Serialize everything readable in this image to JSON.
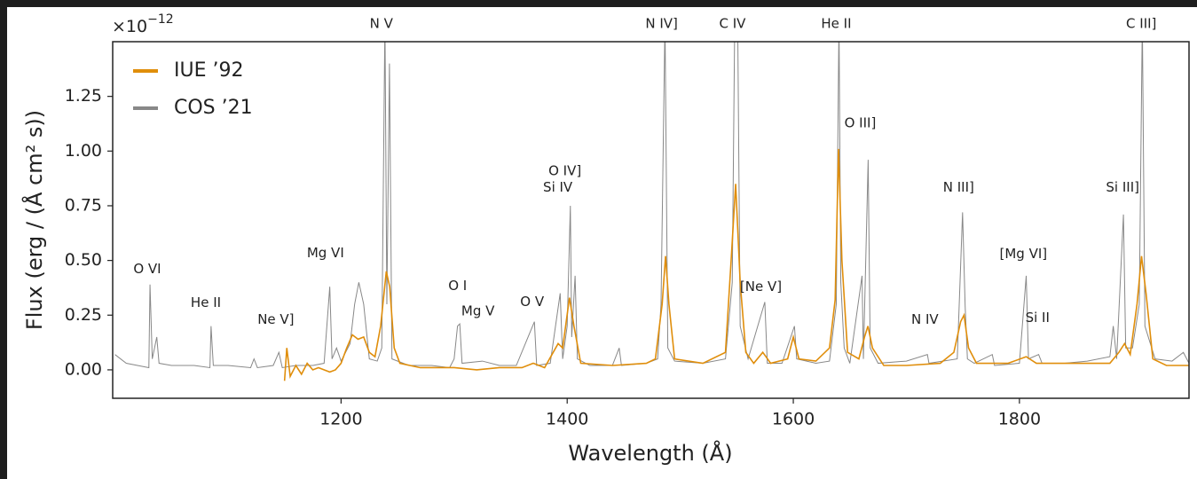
{
  "chart_data": {
    "type": "line",
    "offset_text": "×10",
    "offset_exponent": "−12",
    "xlabel": "Wavelength (Å)",
    "ylabel": "Flux (erg / (Å cm² s))",
    "xlim": [
      998,
      1950
    ],
    "ylim": [
      -0.13,
      1.5
    ],
    "xticks": [
      1200,
      1400,
      1600,
      1800
    ],
    "yticks": [
      {
        "value": 0,
        "label": "0.00"
      },
      0.25,
      {
        "value": 0.5,
        "label": "0.50"
      },
      0.75,
      {
        "value": 1,
        "label": "1.00"
      },
      1.25
    ],
    "legend": "upper left",
    "series": [
      {
        "name": "IUE ’92",
        "color": "#e08e0b",
        "x": [
          1150,
          1152,
          1155,
          1160,
          1165,
          1170,
          1175,
          1180,
          1190,
          1195,
          1200,
          1205,
          1210,
          1215,
          1220,
          1225,
          1230,
          1235,
          1240,
          1243,
          1247,
          1252,
          1270,
          1300,
          1320,
          1340,
          1360,
          1370,
          1380,
          1392,
          1396,
          1402,
          1406,
          1412,
          1440,
          1470,
          1478,
          1484,
          1487,
          1490,
          1495,
          1520,
          1540,
          1545,
          1549,
          1553,
          1558,
          1565,
          1573,
          1580,
          1595,
          1600,
          1605,
          1620,
          1632,
          1637,
          1640,
          1643,
          1648,
          1658,
          1663,
          1666,
          1670,
          1680,
          1700,
          1730,
          1742,
          1748,
          1751,
          1755,
          1762,
          1790,
          1806,
          1815,
          1850,
          1880,
          1888,
          1893,
          1898,
          1904,
          1908,
          1912,
          1918,
          1930,
          1950
        ],
        "values": [
          -0.05,
          0.1,
          -0.03,
          0.02,
          -0.02,
          0.03,
          0.0,
          0.01,
          -0.01,
          0.0,
          0.03,
          0.1,
          0.16,
          0.14,
          0.15,
          0.08,
          0.06,
          0.2,
          0.45,
          0.38,
          0.1,
          0.03,
          0.01,
          0.01,
          0.0,
          0.01,
          0.01,
          0.03,
          0.01,
          0.12,
          0.1,
          0.33,
          0.2,
          0.03,
          0.02,
          0.03,
          0.05,
          0.3,
          0.52,
          0.3,
          0.05,
          0.03,
          0.08,
          0.5,
          0.85,
          0.4,
          0.08,
          0.03,
          0.08,
          0.03,
          0.05,
          0.15,
          0.05,
          0.04,
          0.1,
          0.32,
          1.01,
          0.5,
          0.08,
          0.05,
          0.15,
          0.2,
          0.1,
          0.02,
          0.02,
          0.03,
          0.08,
          0.22,
          0.25,
          0.1,
          0.03,
          0.03,
          0.06,
          0.03,
          0.03,
          0.03,
          0.08,
          0.12,
          0.07,
          0.3,
          0.52,
          0.35,
          0.05,
          0.02,
          0.02
        ]
      },
      {
        "name": "COS ’21",
        "color": "#888888",
        "x": [
          1000,
          1010,
          1020,
          1030,
          1031,
          1033,
          1037,
          1039,
          1050,
          1070,
          1084,
          1085,
          1087,
          1100,
          1120,
          1123,
          1126,
          1140,
          1145,
          1148,
          1160,
          1175,
          1185,
          1190,
          1192,
          1196,
          1200,
          1208,
          1212,
          1215.7,
          1220,
          1225,
          1232,
          1236,
          1238.8,
          1240.5,
          1242.8,
          1245,
          1260,
          1280,
          1296,
          1300,
          1303,
          1305,
          1307,
          1325,
          1340,
          1355,
          1371,
          1373,
          1385,
          1393.8,
          1396,
          1400,
          1402.8,
          1404,
          1407,
          1409,
          1420,
          1440,
          1446,
          1448,
          1470,
          1480,
          1483,
          1486.5,
          1489,
          1495,
          1520,
          1540,
          1546,
          1548.2,
          1550.8,
          1553,
          1560,
          1574.8,
          1577,
          1590,
          1601,
          1603,
          1620,
          1632,
          1638,
          1640.4,
          1642,
          1645,
          1650,
          1660.8,
          1662,
          1666.2,
          1668,
          1675,
          1700,
          1718.6,
          1720,
          1745,
          1749.7,
          1752,
          1754,
          1760,
          1776,
          1778,
          1800,
          1806,
          1808,
          1817,
          1820,
          1840,
          1860,
          1880,
          1883,
          1886,
          1892,
          1894,
          1900,
          1906,
          1908.7,
          1911,
          1920,
          1935,
          1945,
          1950
        ],
        "values": [
          0.07,
          0.03,
          0.02,
          0.01,
          0.39,
          0.05,
          0.15,
          0.03,
          0.02,
          0.02,
          0.01,
          0.2,
          0.02,
          0.02,
          0.01,
          0.05,
          0.01,
          0.02,
          0.08,
          0.01,
          0.02,
          0.02,
          0.03,
          0.38,
          0.05,
          0.1,
          0.04,
          0.12,
          0.3,
          0.4,
          0.3,
          0.05,
          0.04,
          0.1,
          1.6,
          0.3,
          1.4,
          0.05,
          0.02,
          0.02,
          0.01,
          0.05,
          0.2,
          0.21,
          0.03,
          0.04,
          0.02,
          0.02,
          0.22,
          0.02,
          0.03,
          0.35,
          0.05,
          0.2,
          0.75,
          0.15,
          0.43,
          0.05,
          0.02,
          0.02,
          0.1,
          0.02,
          0.03,
          0.05,
          0.3,
          1.6,
          0.1,
          0.04,
          0.03,
          0.05,
          0.4,
          1.6,
          1.6,
          0.2,
          0.05,
          0.31,
          0.03,
          0.03,
          0.2,
          0.05,
          0.03,
          0.04,
          0.3,
          1.6,
          0.4,
          0.1,
          0.03,
          0.43,
          0.05,
          0.96,
          0.1,
          0.03,
          0.04,
          0.07,
          0.03,
          0.05,
          0.72,
          0.29,
          0.05,
          0.03,
          0.07,
          0.02,
          0.03,
          0.43,
          0.05,
          0.07,
          0.03,
          0.03,
          0.04,
          0.06,
          0.2,
          0.05,
          0.71,
          0.1,
          0.1,
          0.3,
          1.6,
          0.2,
          0.05,
          0.04,
          0.08,
          0.03
        ]
      }
    ],
    "annotations": [
      {
        "text": "O VI",
        "x": 1028.6,
        "y": 0.459
      },
      {
        "text": "He II",
        "x": 1080.4,
        "y": 0.305
      },
      {
        "text": "Ne V]",
        "x": 1142.3,
        "y": 0.228
      },
      {
        "text": "Mg VI",
        "x": 1186.2,
        "y": 0.533
      },
      {
        "text": "N V",
        "x": 1235.6,
        "y": 1.581
      },
      {
        "text": "O I",
        "x": 1303.1,
        "y": 0.382
      },
      {
        "text": "Mg V",
        "x": 1321.1,
        "y": 0.268
      },
      {
        "text": "O V",
        "x": 1369,
        "y": 0.309
      },
      {
        "text": "O IV]",
        "x": 1398,
        "y": 0.907
      },
      {
        "text": "Si IV",
        "x": 1391.7,
        "y": 0.833
      },
      {
        "text": "N IV]",
        "x": 1483.5,
        "y": 1.581
      },
      {
        "text": "C IV",
        "x": 1546.2,
        "y": 1.581
      },
      {
        "text": "[Ne V]",
        "x": 1571.3,
        "y": 0.378
      },
      {
        "text": "He II",
        "x": 1638,
        "y": 1.581
      },
      {
        "text": "O III]",
        "x": 1659.2,
        "y": 1.126
      },
      {
        "text": "N III]",
        "x": 1746.2,
        "y": 0.833
      },
      {
        "text": "N IV",
        "x": 1716.4,
        "y": 0.228
      },
      {
        "text": "[Mg VI]",
        "x": 1803.5,
        "y": 0.528
      },
      {
        "text": "Si II",
        "x": 1816,
        "y": 0.236
      },
      {
        "text": "Si III]",
        "x": 1891.3,
        "y": 0.833
      },
      {
        "text": "C III]",
        "x": 1907.8,
        "y": 1.581
      }
    ]
  }
}
